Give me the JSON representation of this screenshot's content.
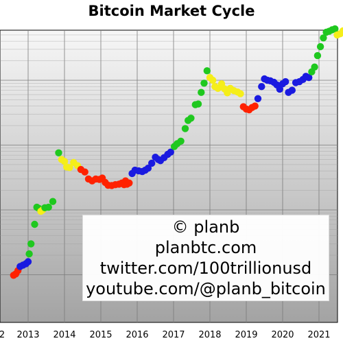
{
  "chart_data": {
    "type": "scatter",
    "title": "Bitcoin Market Cycle",
    "xlabel": "",
    "ylabel": "",
    "x_ticks": [
      "2",
      "2013",
      "2014",
      "2015",
      "2016",
      "2017",
      "2018",
      "2019",
      "2020",
      "2021"
    ],
    "grid": true,
    "log_scale_y": true,
    "colors": {
      "green": "#1fc81f",
      "yellow": "#f5ee1a",
      "red": "#ff2200",
      "blue": "#1a1ae0"
    },
    "points": [
      {
        "x": 2012.6,
        "y": 9.8,
        "c": "red"
      },
      {
        "x": 2012.66,
        "y": 10.3,
        "c": "red"
      },
      {
        "x": 2012.72,
        "y": 11.6,
        "c": "red"
      },
      {
        "x": 2012.78,
        "y": 13.4,
        "c": "blue"
      },
      {
        "x": 2012.86,
        "y": 14.1,
        "c": "blue"
      },
      {
        "x": 2012.94,
        "y": 14.8,
        "c": "blue"
      },
      {
        "x": 2013.0,
        "y": 15.9,
        "c": "blue"
      },
      {
        "x": 2013.03,
        "y": 21.0,
        "c": "green"
      },
      {
        "x": 2013.08,
        "y": 30.0,
        "c": "green"
      },
      {
        "x": 2013.18,
        "y": 60.0,
        "c": "green"
      },
      {
        "x": 2013.24,
        "y": 110.0,
        "c": "green"
      },
      {
        "x": 2013.3,
        "y": 105.0,
        "c": "green"
      },
      {
        "x": 2013.35,
        "y": 95.0,
        "c": "yellow"
      },
      {
        "x": 2013.4,
        "y": 100.0,
        "c": "yellow"
      },
      {
        "x": 2013.46,
        "y": 108.0,
        "c": "green"
      },
      {
        "x": 2013.56,
        "y": 110.0,
        "c": "green"
      },
      {
        "x": 2013.68,
        "y": 135.0,
        "c": "green"
      },
      {
        "x": 2013.84,
        "y": 760.0,
        "c": "green"
      },
      {
        "x": 2013.92,
        "y": 600.0,
        "c": "yellow"
      },
      {
        "x": 2014.0,
        "y": 560.0,
        "c": "yellow"
      },
      {
        "x": 2014.06,
        "y": 460.0,
        "c": "yellow"
      },
      {
        "x": 2014.14,
        "y": 450.0,
        "c": "yellow"
      },
      {
        "x": 2014.25,
        "y": 540.0,
        "c": "yellow"
      },
      {
        "x": 2014.36,
        "y": 480.0,
        "c": "yellow"
      },
      {
        "x": 2014.45,
        "y": 420.0,
        "c": "red"
      },
      {
        "x": 2014.56,
        "y": 385.0,
        "c": "red"
      },
      {
        "x": 2014.66,
        "y": 300.0,
        "c": "red"
      },
      {
        "x": 2014.76,
        "y": 280.0,
        "c": "red"
      },
      {
        "x": 2014.86,
        "y": 300.0,
        "c": "red"
      },
      {
        "x": 2014.96,
        "y": 295.0,
        "c": "red"
      },
      {
        "x": 2015.04,
        "y": 310.0,
        "c": "red"
      },
      {
        "x": 2015.12,
        "y": 265.0,
        "c": "red"
      },
      {
        "x": 2015.2,
        "y": 240.0,
        "c": "red"
      },
      {
        "x": 2015.3,
        "y": 238.0,
        "c": "red"
      },
      {
        "x": 2015.4,
        "y": 245.0,
        "c": "red"
      },
      {
        "x": 2015.5,
        "y": 250.0,
        "c": "red"
      },
      {
        "x": 2015.58,
        "y": 260.0,
        "c": "red"
      },
      {
        "x": 2015.64,
        "y": 245.0,
        "c": "red"
      },
      {
        "x": 2015.68,
        "y": 280.0,
        "c": "red"
      },
      {
        "x": 2015.72,
        "y": 250.0,
        "c": "red"
      },
      {
        "x": 2015.78,
        "y": 260.0,
        "c": "red"
      },
      {
        "x": 2015.86,
        "y": 365.0,
        "c": "blue"
      },
      {
        "x": 2015.94,
        "y": 410.0,
        "c": "blue"
      },
      {
        "x": 2016.04,
        "y": 400.0,
        "c": "blue"
      },
      {
        "x": 2016.14,
        "y": 390.0,
        "c": "blue"
      },
      {
        "x": 2016.22,
        "y": 410.0,
        "c": "blue"
      },
      {
        "x": 2016.3,
        "y": 440.0,
        "c": "blue"
      },
      {
        "x": 2016.4,
        "y": 525.0,
        "c": "blue"
      },
      {
        "x": 2016.5,
        "y": 650.0,
        "c": "blue"
      },
      {
        "x": 2016.58,
        "y": 600.0,
        "c": "blue"
      },
      {
        "x": 2016.64,
        "y": 575.0,
        "c": "blue"
      },
      {
        "x": 2016.74,
        "y": 640.0,
        "c": "blue"
      },
      {
        "x": 2016.84,
        "y": 720.0,
        "c": "blue"
      },
      {
        "x": 2016.92,
        "y": 780.0,
        "c": "blue"
      },
      {
        "x": 2017.02,
        "y": 950.0,
        "c": "green"
      },
      {
        "x": 2017.1,
        "y": 1050.0,
        "c": "green"
      },
      {
        "x": 2017.2,
        "y": 1150.0,
        "c": "green"
      },
      {
        "x": 2017.32,
        "y": 1800.0,
        "c": "green"
      },
      {
        "x": 2017.4,
        "y": 2400.0,
        "c": "green"
      },
      {
        "x": 2017.48,
        "y": 2600.0,
        "c": "green"
      },
      {
        "x": 2017.6,
        "y": 4200.0,
        "c": "green"
      },
      {
        "x": 2017.68,
        "y": 4300.0,
        "c": "green"
      },
      {
        "x": 2017.76,
        "y": 6500.0,
        "c": "green"
      },
      {
        "x": 2017.84,
        "y": 9000.0,
        "c": "green"
      },
      {
        "x": 2017.92,
        "y": 14000.0,
        "c": "green"
      },
      {
        "x": 2018.0,
        "y": 11000.0,
        "c": "yellow"
      },
      {
        "x": 2018.08,
        "y": 10000.0,
        "c": "yellow"
      },
      {
        "x": 2018.14,
        "y": 8000.0,
        "c": "yellow"
      },
      {
        "x": 2018.22,
        "y": 7500.0,
        "c": "yellow"
      },
      {
        "x": 2018.32,
        "y": 8800.0,
        "c": "yellow"
      },
      {
        "x": 2018.4,
        "y": 7400.0,
        "c": "yellow"
      },
      {
        "x": 2018.48,
        "y": 6400.0,
        "c": "yellow"
      },
      {
        "x": 2018.56,
        "y": 7500.0,
        "c": "yellow"
      },
      {
        "x": 2018.66,
        "y": 6900.0,
        "c": "yellow"
      },
      {
        "x": 2018.76,
        "y": 6600.0,
        "c": "yellow"
      },
      {
        "x": 2018.84,
        "y": 6200.0,
        "c": "yellow"
      },
      {
        "x": 2018.92,
        "y": 3900.0,
        "c": "red"
      },
      {
        "x": 2019.0,
        "y": 3600.0,
        "c": "red"
      },
      {
        "x": 2019.08,
        "y": 3500.0,
        "c": "red"
      },
      {
        "x": 2019.16,
        "y": 3800.0,
        "c": "red"
      },
      {
        "x": 2019.24,
        "y": 4000.0,
        "c": "red"
      },
      {
        "x": 2019.32,
        "y": 5200.0,
        "c": "blue"
      },
      {
        "x": 2019.42,
        "y": 8000.0,
        "c": "blue"
      },
      {
        "x": 2019.5,
        "y": 10500.0,
        "c": "blue"
      },
      {
        "x": 2019.58,
        "y": 10000.0,
        "c": "blue"
      },
      {
        "x": 2019.66,
        "y": 9800.0,
        "c": "blue"
      },
      {
        "x": 2019.76,
        "y": 9300.0,
        "c": "blue"
      },
      {
        "x": 2019.84,
        "y": 8500.0,
        "c": "blue"
      },
      {
        "x": 2019.92,
        "y": 7300.0,
        "c": "blue"
      },
      {
        "x": 2020.0,
        "y": 8800.0,
        "c": "blue"
      },
      {
        "x": 2020.08,
        "y": 9500.0,
        "c": "blue"
      },
      {
        "x": 2020.16,
        "y": 6500.0,
        "c": "blue"
      },
      {
        "x": 2020.26,
        "y": 7000.0,
        "c": "blue"
      },
      {
        "x": 2020.36,
        "y": 9200.0,
        "c": "blue"
      },
      {
        "x": 2020.46,
        "y": 9500.0,
        "c": "blue"
      },
      {
        "x": 2020.56,
        "y": 10300.0,
        "c": "blue"
      },
      {
        "x": 2020.64,
        "y": 11500.0,
        "c": "blue"
      },
      {
        "x": 2020.72,
        "y": 11000.0,
        "c": "blue"
      },
      {
        "x": 2020.8,
        "y": 13500.0,
        "c": "green"
      },
      {
        "x": 2020.88,
        "y": 16000.0,
        "c": "green"
      },
      {
        "x": 2020.96,
        "y": 24000.0,
        "c": "green"
      },
      {
        "x": 2021.04,
        "y": 33000.0,
        "c": "green"
      },
      {
        "x": 2021.12,
        "y": 45000.0,
        "c": "green"
      },
      {
        "x": 2021.2,
        "y": 55000.0,
        "c": "green"
      },
      {
        "x": 2021.28,
        "y": 57000.0,
        "c": "green"
      },
      {
        "x": 2021.36,
        "y": 60000.0,
        "c": "green"
      },
      {
        "x": 2021.44,
        "y": 62000.0,
        "c": "green"
      },
      {
        "x": 2021.5,
        "y": 50000.0,
        "c": "yellow"
      },
      {
        "x": 2021.58,
        "y": 52000.0,
        "c": "yellow"
      },
      {
        "x": 2021.66,
        "y": 58000.0,
        "c": "yellow"
      },
      {
        "x": 2021.74,
        "y": 61000.0,
        "c": "yellow"
      }
    ]
  },
  "watermark": {
    "line1": "© planb",
    "line2": "planbtc.com",
    "line3": "twitter.com/100trillionusd",
    "line4": "youtube.com/@planb_bitcoin"
  }
}
